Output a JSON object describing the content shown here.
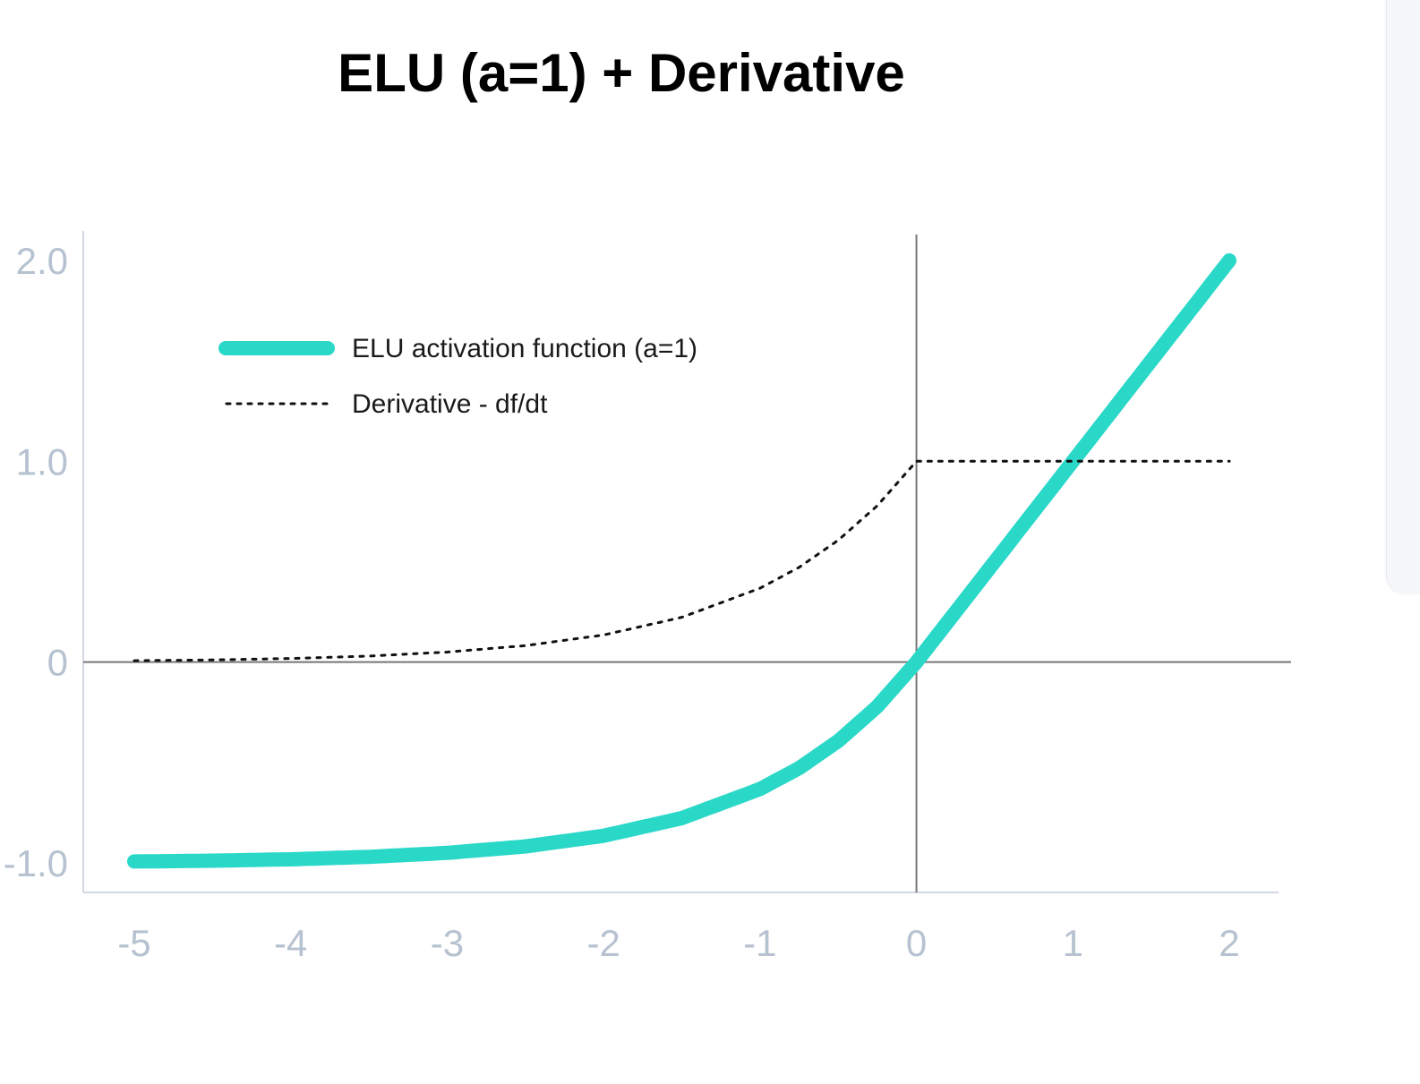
{
  "chart_data": {
    "type": "line",
    "title": "ELU (a=1) + Derivative",
    "xlabel": "",
    "ylabel": "",
    "xlim": [
      -5,
      2
    ],
    "ylim": [
      -1,
      2
    ],
    "x_ticks": [
      "-5",
      "-4",
      "-3",
      "-2",
      "-1",
      "0",
      "1",
      "2"
    ],
    "y_ticks": [
      "-1.0",
      "0",
      "1.0",
      "2.0"
    ],
    "legend_position": "top-left",
    "grid": false,
    "series": [
      {
        "name": "ELU activation function (a=1)",
        "style": "solid",
        "color": "#2ad8c8",
        "x": [
          -5,
          -4.5,
          -4,
          -3.5,
          -3,
          -2.5,
          -2,
          -1.5,
          -1,
          -0.75,
          -0.5,
          -0.25,
          0,
          0.5,
          1,
          1.5,
          2
        ],
        "y": [
          -0.993,
          -0.989,
          -0.982,
          -0.97,
          -0.95,
          -0.918,
          -0.865,
          -0.777,
          -0.632,
          -0.528,
          -0.393,
          -0.221,
          0,
          0.5,
          1,
          1.5,
          2
        ]
      },
      {
        "name": "Derivative - df/dt",
        "style": "dotted",
        "color": "#111111",
        "x": [
          -5,
          -4.5,
          -4,
          -3.5,
          -3,
          -2.5,
          -2,
          -1.5,
          -1,
          -0.75,
          -0.5,
          -0.25,
          0,
          0.5,
          1,
          1.5,
          2
        ],
        "y": [
          0.007,
          0.011,
          0.018,
          0.03,
          0.05,
          0.082,
          0.135,
          0.223,
          0.368,
          0.472,
          0.607,
          0.779,
          1,
          1,
          1,
          1,
          1
        ]
      }
    ]
  }
}
